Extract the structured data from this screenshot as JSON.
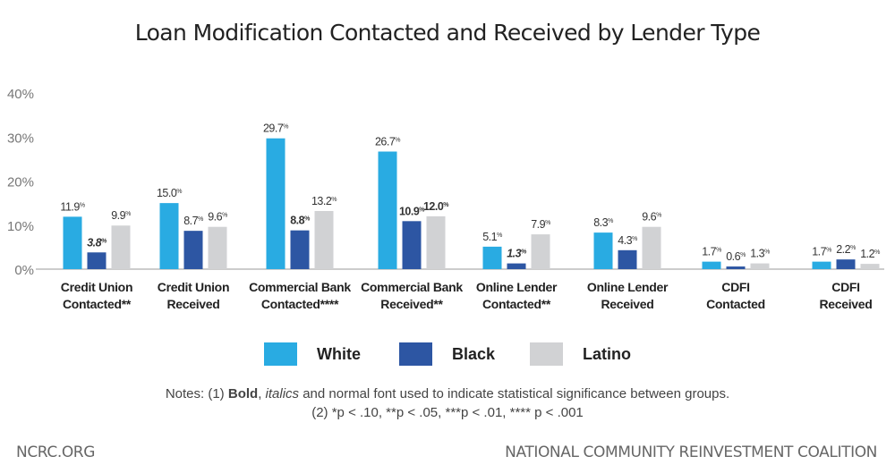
{
  "chart_data": {
    "type": "bar",
    "title": "Loan Modification Contacted and Received by Lender Type",
    "ylim": [
      0,
      40
    ],
    "yticks": [
      "0%",
      "10%",
      "20%",
      "30%",
      "40%"
    ],
    "grid": false,
    "legend_position": "bottom",
    "categories": [
      [
        "Credit Union",
        "Contacted**"
      ],
      [
        "Credit Union",
        "Received"
      ],
      [
        "Commercial Bank",
        "Contacted****"
      ],
      [
        "Commercial Bank",
        "Received**"
      ],
      [
        "Online Lender",
        "Contacted**"
      ],
      [
        "Online Lender",
        "Received"
      ],
      [
        "CDFI",
        "Contacted"
      ],
      [
        "CDFI",
        "Received"
      ]
    ],
    "series": [
      {
        "name": "White",
        "color": "#29abe2",
        "values": [
          11.9,
          15.0,
          29.7,
          26.7,
          5.1,
          8.3,
          1.7,
          1.7
        ],
        "labels": [
          "11.9%",
          "15.0%",
          "29.7%",
          "26.7%",
          "5.1%",
          "8.3%",
          "1.7%",
          "1.7%"
        ],
        "styles": [
          "normal",
          "normal",
          "normal",
          "normal",
          "normal",
          "normal",
          "normal",
          "normal"
        ]
      },
      {
        "name": "Black",
        "color": "#2d56a3",
        "values": [
          3.8,
          8.7,
          8.8,
          10.9,
          1.3,
          4.3,
          0.6,
          2.2
        ],
        "labels": [
          "3.8%",
          "8.7%",
          "8.8%",
          "10.9%",
          "1.3%",
          "4.3%",
          "0.6%",
          "2.2%"
        ],
        "styles": [
          "bold-italic",
          "normal",
          "bold",
          "bold",
          "bold-italic",
          "normal",
          "normal",
          "normal"
        ]
      },
      {
        "name": "Latino",
        "color": "#d1d2d4",
        "values": [
          9.9,
          9.6,
          13.2,
          12.0,
          7.9,
          9.6,
          1.3,
          1.2
        ],
        "labels": [
          "9.9%",
          "9.6%",
          "13.2%",
          "12.0%",
          "7.9%",
          "9.6%",
          "1.3%",
          "1.2%"
        ],
        "styles": [
          "normal",
          "normal",
          "normal",
          "bold",
          "normal",
          "normal",
          "normal",
          "normal"
        ]
      }
    ]
  },
  "notes": {
    "line1_prefix": "Notes: (1) ",
    "line1_bold": "Bold",
    "line1_sep": ", ",
    "line1_italic": "italics",
    "line1_suffix": " and normal font used to indicate statistical significance between groups.",
    "line2": "(2) *p < .10, **p < .05, ***p < .01, **** p < .001"
  },
  "footer": {
    "left": "NCRC.ORG",
    "right": "NATIONAL COMMUNITY REINVESTMENT COALITION"
  }
}
